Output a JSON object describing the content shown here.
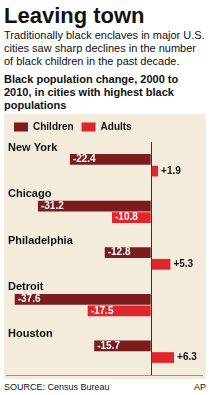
{
  "chart_data": {
    "type": "bar",
    "title": "Leaving town",
    "subtitle": "Traditionally black enclaves in major U.S. cities saw sharp declines in the number of black children in the past decade.",
    "heading": "Black population change, 2000 to 2010, in cities with highest black populations",
    "source": "SOURCE: Census Bureau",
    "credit": "AP",
    "orientation": "horizontal",
    "categories": [
      "New York",
      "Chicago",
      "Philadelphia",
      "Detroit",
      "Houston"
    ],
    "series": [
      {
        "name": "Children",
        "color": "#7b1c1f",
        "values": [
          -22.4,
          -31.2,
          -12.8,
          -37.6,
          -15.7
        ]
      },
      {
        "name": "Adults",
        "color": "#e0262d",
        "values": [
          1.9,
          -10.8,
          5.3,
          -17.5,
          6.3
        ],
        "value_labels": [
          "+1.9",
          "-10.8",
          "+5.3",
          "-17.5",
          "+6.3"
        ]
      }
    ],
    "xlim": [
      -40,
      14
    ],
    "xticks": [
      0
    ],
    "grid": true,
    "legend": "top",
    "data_labels": true,
    "tick_labels": "y"
  }
}
